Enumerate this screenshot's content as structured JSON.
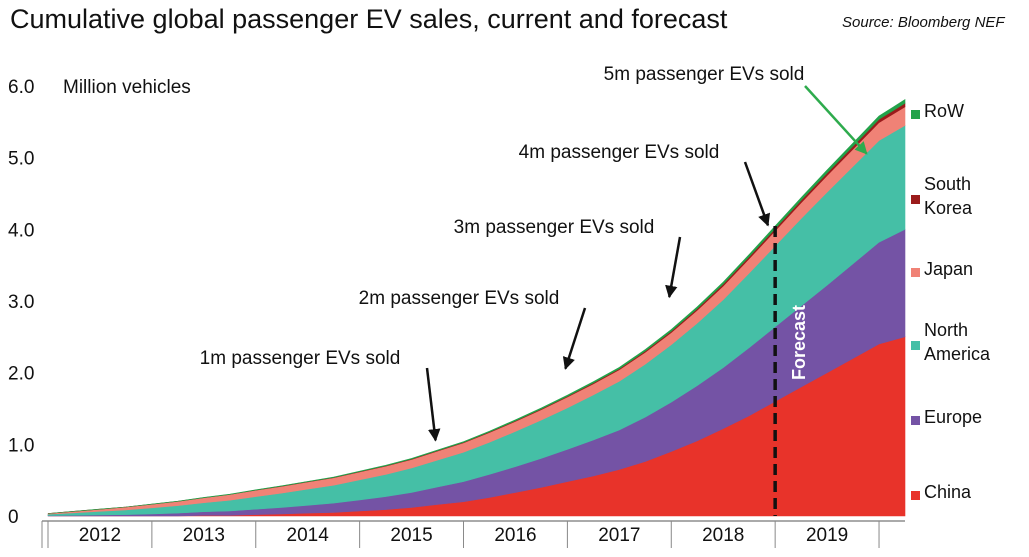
{
  "title": "Cumulative global passenger EV sales, current and forecast",
  "source": "Source: Bloomberg NEF",
  "colors": {
    "China": "#e8332a",
    "Europe": "#7453a5",
    "North America": "#45bfa6",
    "Japan": "#f08276",
    "South Korea": "#9b1b1b",
    "RoW": "#22a24a",
    "highlight_annotation": "#2eab4d"
  },
  "chart_data": {
    "type": "area",
    "stacked": true,
    "ylabel": "Million vehicles",
    "ylim": [
      0,
      6.0
    ],
    "yticks": [
      0,
      1.0,
      2.0,
      3.0,
      4.0,
      5.0,
      6.0
    ],
    "ytick_labels": [
      "0",
      "1.0",
      "2.0",
      "3.0",
      "4.0",
      "5.0",
      "6.0"
    ],
    "xlim": [
      2011.5,
      2019.75
    ],
    "year_labels": [
      "2012",
      "2013",
      "2014",
      "2015",
      "2016",
      "2017",
      "2018",
      "2019"
    ],
    "x": [
      2011.5,
      2011.75,
      2012.0,
      2012.25,
      2012.5,
      2012.75,
      2013.0,
      2013.25,
      2013.5,
      2013.75,
      2014.0,
      2014.25,
      2014.5,
      2014.75,
      2015.0,
      2015.25,
      2015.5,
      2015.75,
      2016.0,
      2016.25,
      2016.5,
      2016.75,
      2017.0,
      2017.25,
      2017.5,
      2017.75,
      2018.0,
      2018.25,
      2018.5,
      2018.75,
      2019.0,
      2019.25,
      2019.5,
      2019.75
    ],
    "series": [
      {
        "name": "China",
        "values": [
          0.0,
          0.0,
          0.0,
          0.0,
          0.0,
          0.0,
          0.01,
          0.01,
          0.02,
          0.03,
          0.04,
          0.05,
          0.07,
          0.09,
          0.12,
          0.16,
          0.2,
          0.26,
          0.33,
          0.4,
          0.48,
          0.56,
          0.65,
          0.76,
          0.9,
          1.05,
          1.22,
          1.4,
          1.6,
          1.8,
          2.0,
          2.2,
          2.4,
          2.5
        ]
      },
      {
        "name": "Europe",
        "values": [
          0.005,
          0.01,
          0.015,
          0.02,
          0.03,
          0.04,
          0.05,
          0.06,
          0.075,
          0.09,
          0.11,
          0.13,
          0.155,
          0.18,
          0.21,
          0.245,
          0.28,
          0.32,
          0.36,
          0.405,
          0.45,
          0.5,
          0.55,
          0.62,
          0.69,
          0.77,
          0.85,
          0.95,
          1.04,
          1.13,
          1.22,
          1.32,
          1.42,
          1.5
        ]
      },
      {
        "name": "North America",
        "values": [
          0.02,
          0.035,
          0.05,
          0.065,
          0.085,
          0.105,
          0.125,
          0.15,
          0.175,
          0.2,
          0.225,
          0.25,
          0.28,
          0.31,
          0.34,
          0.375,
          0.41,
          0.45,
          0.49,
          0.535,
          0.58,
          0.63,
          0.68,
          0.74,
          0.8,
          0.87,
          0.95,
          1.04,
          1.13,
          1.22,
          1.3,
          1.36,
          1.42,
          1.45
        ]
      },
      {
        "name": "Japan",
        "values": [
          0.01,
          0.02,
          0.03,
          0.04,
          0.05,
          0.06,
          0.07,
          0.08,
          0.09,
          0.095,
          0.1,
          0.105,
          0.11,
          0.115,
          0.12,
          0.125,
          0.13,
          0.135,
          0.14,
          0.145,
          0.15,
          0.155,
          0.16,
          0.165,
          0.17,
          0.18,
          0.19,
          0.2,
          0.21,
          0.22,
          0.23,
          0.24,
          0.25,
          0.26
        ]
      },
      {
        "name": "South Korea",
        "values": [
          0.0,
          0.0,
          0.0,
          0.0,
          0.0,
          0.0,
          0.001,
          0.001,
          0.002,
          0.002,
          0.003,
          0.003,
          0.004,
          0.005,
          0.006,
          0.007,
          0.008,
          0.009,
          0.01,
          0.011,
          0.012,
          0.014,
          0.016,
          0.018,
          0.02,
          0.023,
          0.026,
          0.029,
          0.032,
          0.035,
          0.038,
          0.042,
          0.046,
          0.05
        ]
      },
      {
        "name": "RoW",
        "values": [
          0.0,
          0.0,
          0.001,
          0.001,
          0.002,
          0.002,
          0.003,
          0.003,
          0.004,
          0.004,
          0.005,
          0.005,
          0.006,
          0.007,
          0.008,
          0.009,
          0.01,
          0.011,
          0.012,
          0.013,
          0.014,
          0.016,
          0.018,
          0.02,
          0.022,
          0.025,
          0.028,
          0.031,
          0.034,
          0.037,
          0.04,
          0.043,
          0.046,
          0.05
        ]
      }
    ],
    "forecast_start": 2018.5,
    "forecast_label": "Forecast",
    "annotations": [
      {
        "text": "1m passenger EVs sold",
        "x": 2015.25,
        "y": 1.0
      },
      {
        "text": "2m passenger EVs sold",
        "x": 2016.5,
        "y": 2.0
      },
      {
        "text": "3m passenger EVs sold",
        "x": 2017.5,
        "y": 3.0
      },
      {
        "text": "4m passenger EVs sold",
        "x": 2018.45,
        "y": 4.0
      },
      {
        "text": "5m passenger EVs sold",
        "x": 2019.4,
        "y": 5.0,
        "highlight": true
      }
    ],
    "legend": [
      "RoW",
      "South Korea",
      "Japan",
      "North America",
      "Europe",
      "China"
    ],
    "legend_placement": "right"
  }
}
